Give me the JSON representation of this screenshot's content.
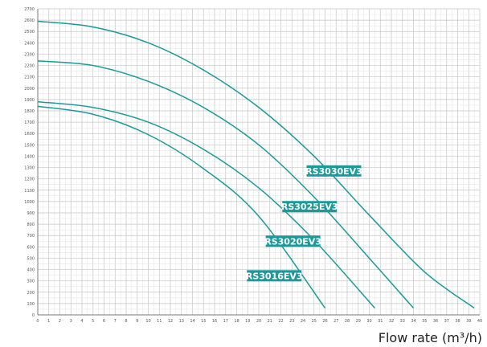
{
  "chart_data": {
    "type": "line",
    "xlabel": "Flow rate (m³/h)",
    "ylabel": "",
    "xlim": [
      0,
      40
    ],
    "ylim": [
      0,
      2700
    ],
    "grid": true,
    "x_ticks": [
      0,
      1,
      2,
      3,
      4,
      5,
      6,
      7,
      8,
      9,
      10,
      11,
      12,
      13,
      14,
      15,
      16,
      17,
      18,
      19,
      20,
      21,
      22,
      23,
      24,
      25,
      26,
      27,
      28,
      29,
      30,
      31,
      32,
      33,
      34,
      35,
      36,
      37,
      38,
      39,
      40
    ],
    "y_ticks": [
      0,
      100,
      200,
      300,
      400,
      500,
      600,
      700,
      800,
      900,
      1000,
      1100,
      1200,
      1300,
      1400,
      1500,
      1600,
      1700,
      1800,
      1900,
      2000,
      2100,
      2200,
      2300,
      2400,
      2500,
      2600,
      2700
    ],
    "series": [
      {
        "name": "RS3030EV3",
        "x": [
          0,
          5,
          10,
          15,
          20,
          25,
          30,
          35,
          39.5
        ],
        "y": [
          2590,
          2540,
          2400,
          2160,
          1830,
          1400,
          880,
          380,
          60
        ]
      },
      {
        "name": "RS3025EV3",
        "x": [
          0,
          5,
          10,
          15,
          20,
          25,
          30,
          34
        ],
        "y": [
          2240,
          2200,
          2060,
          1830,
          1500,
          1040,
          500,
          60
        ]
      },
      {
        "name": "RS3020EV3",
        "x": [
          0,
          5,
          10,
          15,
          20,
          25,
          30.5
        ],
        "y": [
          1880,
          1830,
          1700,
          1460,
          1120,
          660,
          60
        ]
      },
      {
        "name": "RS3016EV3",
        "x": [
          0,
          5,
          10,
          15,
          20,
          26
        ],
        "y": [
          1840,
          1770,
          1590,
          1290,
          870,
          60
        ]
      }
    ]
  }
}
